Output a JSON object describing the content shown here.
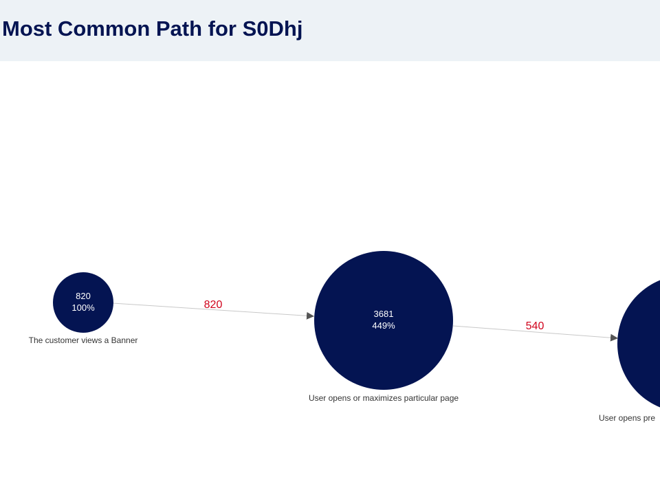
{
  "header": {
    "title": "Most Common Path for S0Dhj"
  },
  "nodes": [
    {
      "id": "n1",
      "value": "820",
      "percent": "100%",
      "label": "The customer views a Banner"
    },
    {
      "id": "n2",
      "value": "3681",
      "percent": "449%",
      "label": "User opens or maximizes particular page"
    },
    {
      "id": "n3",
      "label": "User opens pre"
    }
  ],
  "edges": [
    {
      "from": "n1",
      "to": "n2",
      "value": "820"
    },
    {
      "from": "n2",
      "to": "n3",
      "value": "540"
    }
  ],
  "colors": {
    "node": "#041452",
    "edge": "#c8c8c8",
    "edge_label": "#d0021b",
    "header_bg": "#edf2f6",
    "title": "#041452"
  }
}
